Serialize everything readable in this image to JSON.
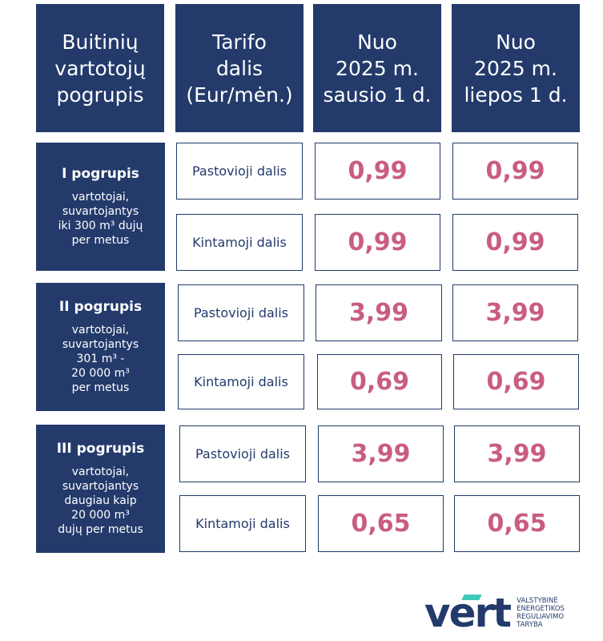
{
  "headers": [
    "Buitinių\nvartotojų\npogrupis",
    "Tarifo\ndalis\n(Eur/mėn.)",
    "Nuo\n2025 m.\nsausio 1 d.",
    "Nuo\n2025 m.\nliepos 1 d."
  ],
  "groups": [
    {
      "title": "I  pogrupis",
      "desc": "vartotojai,\nsuvartojantys\niki 300 m³ dujų\nper metus",
      "rows": [
        {
          "part": "Pastovioji dalis",
          "jan": "0,99",
          "jul": "0,99"
        },
        {
          "part": "Kintamoji dalis",
          "jan": "0,99",
          "jul": "0,99"
        }
      ]
    },
    {
      "title": "II  pogrupis",
      "desc": "vartotojai,\nsuvartojantys\n301 m³ -\n20 000 m³\nper metus",
      "rows": [
        {
          "part": "Pastovioji dalis",
          "jan": "3,99",
          "jul": "3,99"
        },
        {
          "part": "Kintamoji dalis",
          "jan": "0,69",
          "jul": "0,69"
        }
      ]
    },
    {
      "title": "III  pogrupis",
      "desc": "vartotojai,\nsuvartojantys\ndaugiau kaip\n20 000 m³\ndujų per metus",
      "rows": [
        {
          "part": "Pastovioji dalis",
          "jan": "3,99",
          "jul": "3,99"
        },
        {
          "part": "Kintamoji dalis",
          "jan": "0,65",
          "jul": "0,65"
        }
      ]
    }
  ],
  "logo": {
    "word": "vert",
    "text": "VALSTYBINĖ\nENERGETIKOS\nREGULIAVIMO\nTARYBA"
  }
}
